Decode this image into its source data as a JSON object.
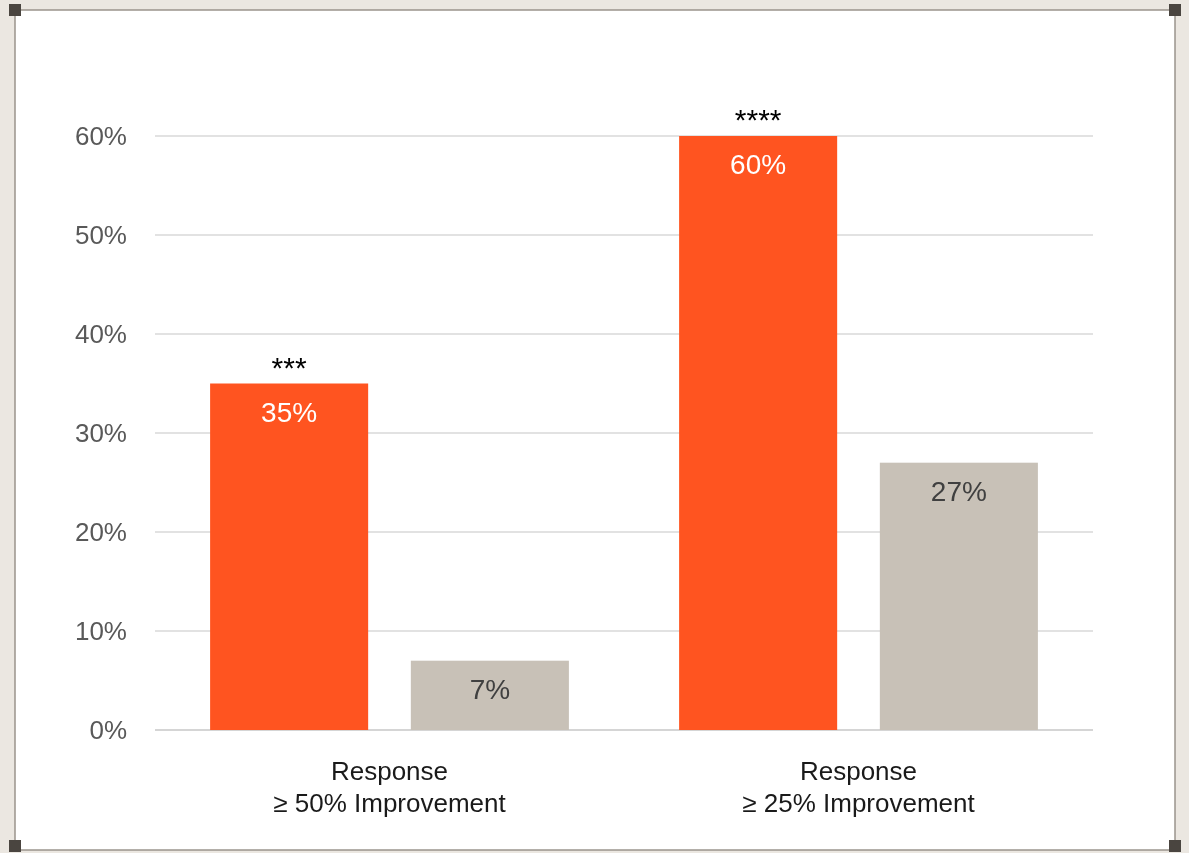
{
  "chart_data": {
    "type": "bar",
    "categories": [
      "Response\n≥ 50% Improvement",
      "Response\n≥ 25% Improvement"
    ],
    "series": [
      {
        "color": "#ff5420",
        "values": [
          35,
          60
        ],
        "value_labels": [
          "35%",
          "60%"
        ]
      },
      {
        "color": "#c8c1b7",
        "values": [
          7,
          27
        ],
        "value_labels": [
          "7%",
          "27%"
        ]
      }
    ],
    "ylim": [
      0,
      60
    ],
    "yticks": [
      {
        "value": 0,
        "label": "0%"
      },
      {
        "value": 10,
        "label": "10%"
      },
      {
        "value": 20,
        "label": "20%"
      },
      {
        "value": 30,
        "label": "30%"
      },
      {
        "value": 40,
        "label": "40%"
      },
      {
        "value": 50,
        "label": "50%"
      },
      {
        "value": 60,
        "label": "60%"
      }
    ],
    "grid": "y",
    "annotations": [
      "***",
      "****"
    ]
  }
}
